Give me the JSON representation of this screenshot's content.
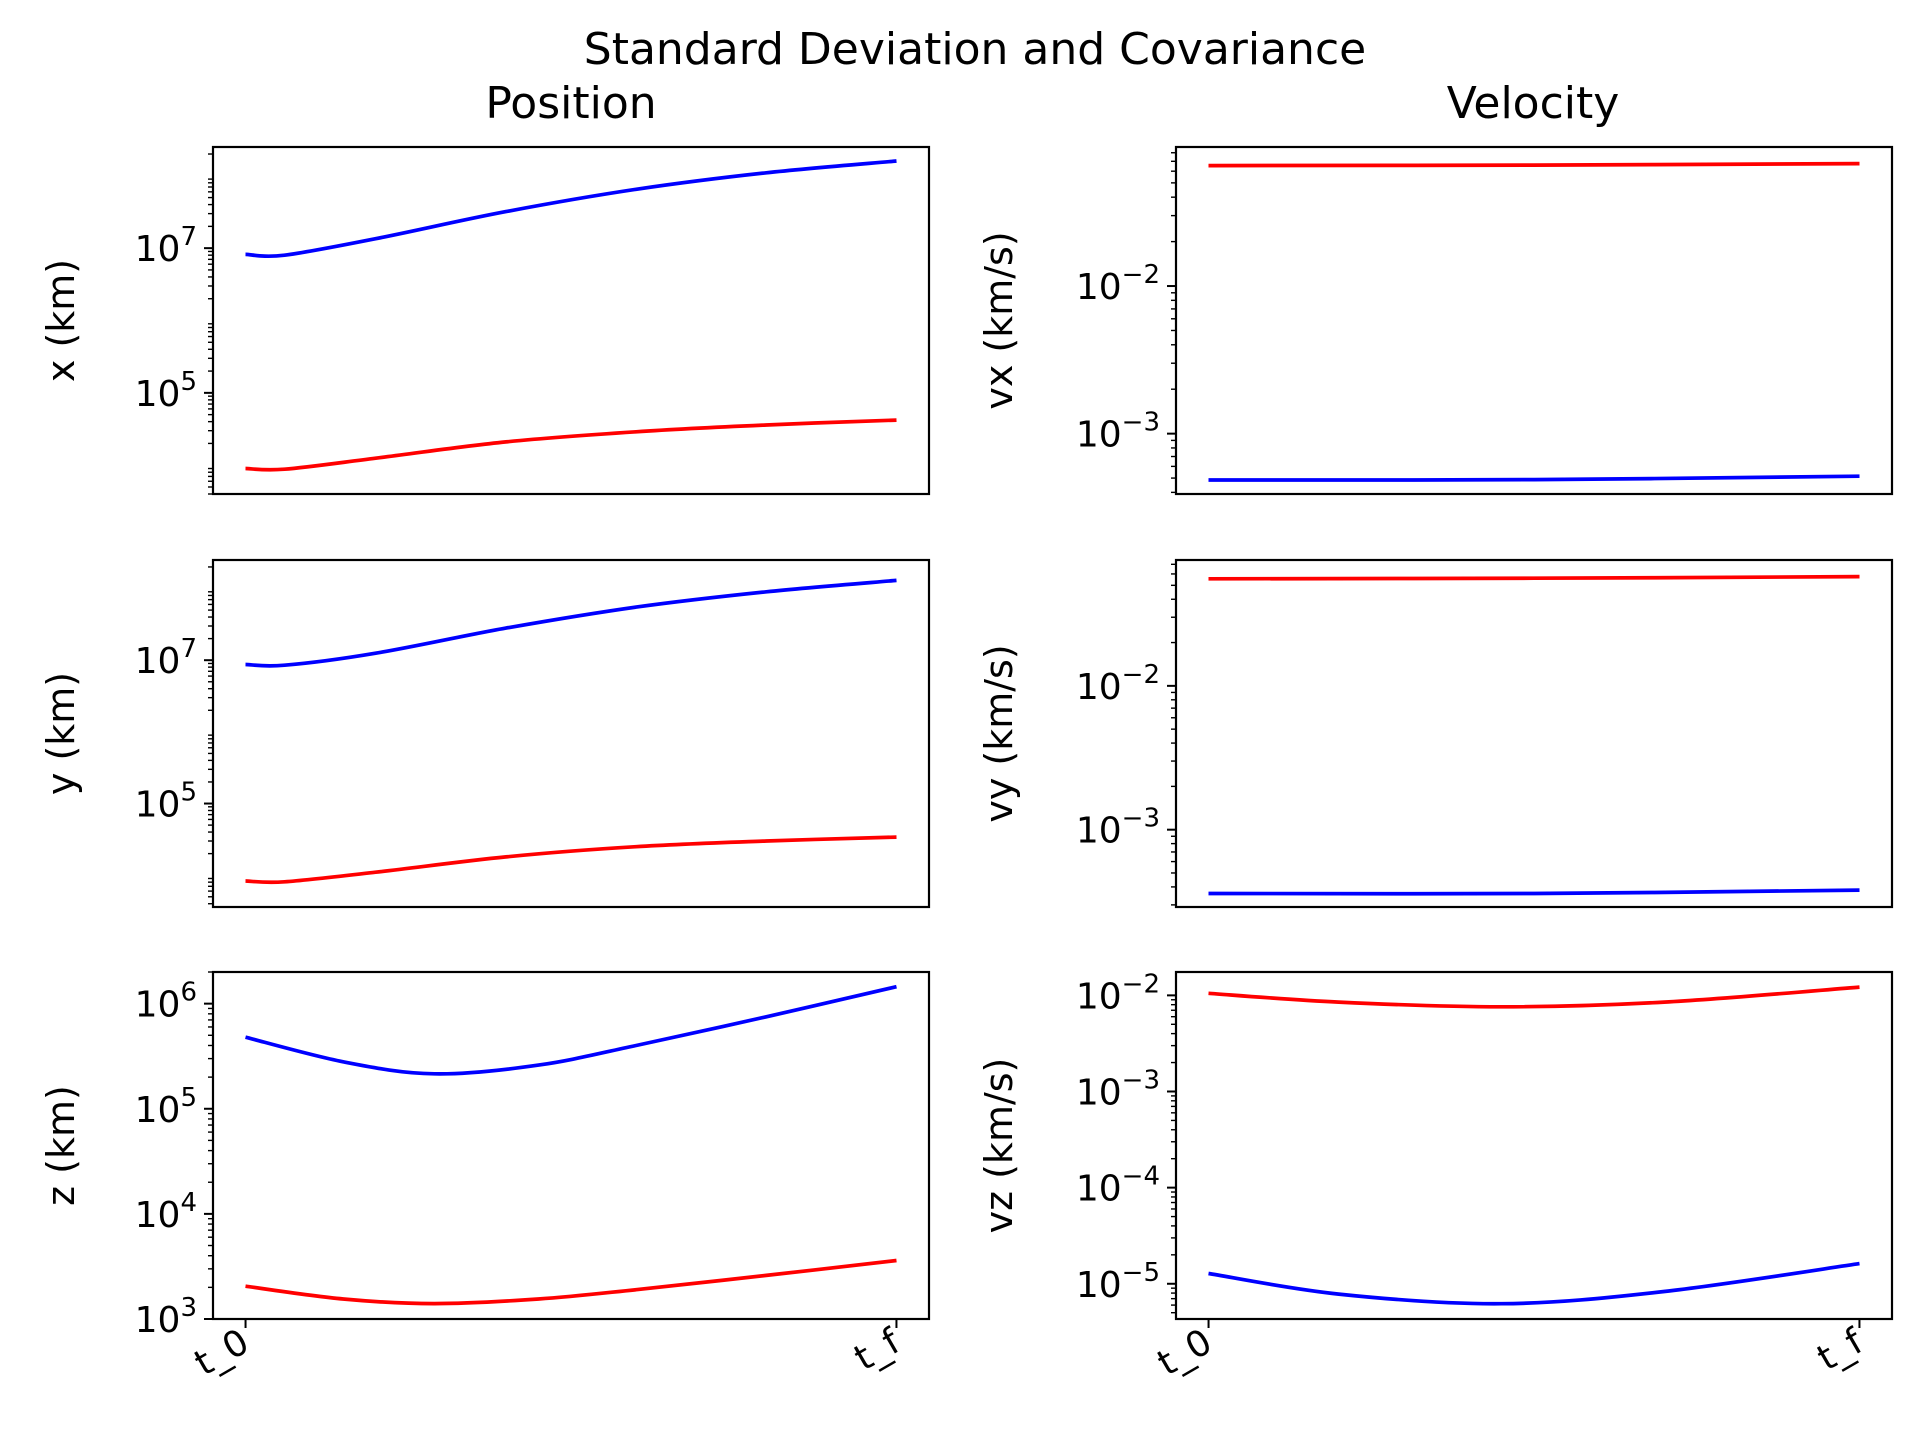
{
  "figure": {
    "title": "Standard Deviation and Covariance",
    "column_titles": [
      "Position",
      "Velocity"
    ]
  },
  "colors": {
    "series_a": "#ff0000",
    "series_b": "#0000ff",
    "axis": "#000000"
  },
  "chart_data": [
    {
      "type": "line",
      "ylabel": "x (km)",
      "yscale": "log",
      "ylim": [
        4000,
        250000000
      ],
      "xlim": [
        -0.05,
        1.05
      ],
      "x_ticks": [],
      "y_ticks": [
        100000,
        10000000
      ],
      "y_tick_labels": [
        {
          "base": "10",
          "exp": "5"
        },
        {
          "base": "10",
          "exp": "7"
        }
      ],
      "series": [
        {
          "color": "#0000ff",
          "x": [
            0,
            0.06,
            0.2,
            0.4,
            0.6,
            0.8,
            1
          ],
          "y": [
            8200000,
            8000000,
            13500000,
            32000000,
            65000000,
            110000000,
            160000000
          ]
        },
        {
          "color": "#ff0000",
          "x": [
            0,
            0.06,
            0.2,
            0.4,
            0.6,
            0.8,
            1
          ],
          "y": [
            9000,
            8800,
            12500,
            21000,
            29000,
            36000,
            42000
          ]
        }
      ]
    },
    {
      "type": "line",
      "ylabel": "vx (km/s)",
      "yscale": "log",
      "ylim": [
        0.00039,
        0.0875
      ],
      "xlim": [
        -0.05,
        1.05
      ],
      "x_ticks": [],
      "y_ticks": [
        0.001,
        0.01
      ],
      "y_tick_labels": [
        {
          "base": "10",
          "exp": "−3"
        },
        {
          "base": "10",
          "exp": "−2"
        }
      ],
      "series": [
        {
          "color": "#ff0000",
          "x": [
            0,
            0.5,
            1
          ],
          "y": [
            0.0655,
            0.066,
            0.0675
          ]
        },
        {
          "color": "#0000ff",
          "x": [
            0,
            0.5,
            1
          ],
          "y": [
            0.000485,
            0.000488,
            0.000515
          ]
        }
      ]
    },
    {
      "type": "line",
      "ylabel": "y (km)",
      "yscale": "log",
      "ylim": [
        3600,
        250000000
      ],
      "xlim": [
        -0.05,
        1.05
      ],
      "x_ticks": [],
      "y_ticks": [
        100000,
        10000000
      ],
      "y_tick_labels": [
        {
          "base": "10",
          "exp": "5"
        },
        {
          "base": "10",
          "exp": "7"
        }
      ],
      "series": [
        {
          "color": "#0000ff",
          "x": [
            0,
            0.06,
            0.2,
            0.4,
            0.6,
            0.8,
            1
          ],
          "y": [
            8700000,
            8500000,
            12500000,
            28000000,
            55000000,
            90000000,
            130000000
          ]
        },
        {
          "color": "#ff0000",
          "x": [
            0,
            0.06,
            0.2,
            0.4,
            0.6,
            0.8,
            1
          ],
          "y": [
            8300,
            8100,
            11000,
            18000,
            25000,
            30000,
            34000
          ]
        }
      ]
    },
    {
      "type": "line",
      "ylabel": "vy (km/s)",
      "yscale": "log",
      "ylim": [
        0.00029,
        0.075
      ],
      "xlim": [
        -0.05,
        1.05
      ],
      "x_ticks": [],
      "y_ticks": [
        0.001,
        0.01
      ],
      "y_tick_labels": [
        {
          "base": "10",
          "exp": "−3"
        },
        {
          "base": "10",
          "exp": "−2"
        }
      ],
      "series": [
        {
          "color": "#ff0000",
          "x": [
            0,
            0.5,
            1
          ],
          "y": [
            0.0555,
            0.056,
            0.0575
          ]
        },
        {
          "color": "#0000ff",
          "x": [
            0,
            0.5,
            1
          ],
          "y": [
            0.00036,
            0.00036,
            0.00038
          ]
        }
      ]
    },
    {
      "type": "line",
      "ylabel": "z (km)",
      "yscale": "log",
      "ylim": [
        1000,
        2000000
      ],
      "xlim": [
        -0.05,
        1.05
      ],
      "x_ticks": [
        "t_0",
        "t_f"
      ],
      "y_ticks": [
        1000,
        10000,
        100000,
        1000000
      ],
      "y_tick_labels": [
        {
          "base": "10",
          "exp": "3"
        },
        {
          "base": "10",
          "exp": "4"
        },
        {
          "base": "10",
          "exp": "5"
        },
        {
          "base": "10",
          "exp": "6"
        }
      ],
      "series": [
        {
          "color": "#0000ff",
          "x": [
            0,
            0.15,
            0.29,
            0.45,
            0.6,
            0.8,
            1
          ],
          "y": [
            480000,
            280000,
            215000,
            260000,
            400000,
            750000,
            1450000
          ]
        },
        {
          "color": "#ff0000",
          "x": [
            0,
            0.15,
            0.29,
            0.45,
            0.6,
            0.8,
            1
          ],
          "y": [
            2050,
            1550,
            1400,
            1550,
            1900,
            2600,
            3600
          ]
        }
      ]
    },
    {
      "type": "line",
      "ylabel": "vz (km/s)",
      "yscale": "log",
      "ylim": [
        4.3e-06,
        0.0175
      ],
      "xlim": [
        -0.05,
        1.05
      ],
      "x_ticks": [
        "t_0",
        "t_f"
      ],
      "y_ticks": [
        1e-05,
        0.0001,
        0.001,
        0.01
      ],
      "y_tick_labels": [
        {
          "base": "10",
          "exp": "−5"
        },
        {
          "base": "10",
          "exp": "−4"
        },
        {
          "base": "10",
          "exp": "−3"
        },
        {
          "base": "10",
          "exp": "−2"
        }
      ],
      "series": [
        {
          "color": "#ff0000",
          "x": [
            0,
            0.2,
            0.45,
            0.7,
            1
          ],
          "y": [
            0.0105,
            0.0085,
            0.0076,
            0.0085,
            0.0122
          ]
        },
        {
          "color": "#0000ff",
          "x": [
            0,
            0.2,
            0.45,
            0.7,
            1
          ],
          "y": [
            1.28e-05,
            7.8e-06,
            6.2e-06,
            8.3e-06,
            1.62e-05
          ]
        }
      ]
    }
  ]
}
